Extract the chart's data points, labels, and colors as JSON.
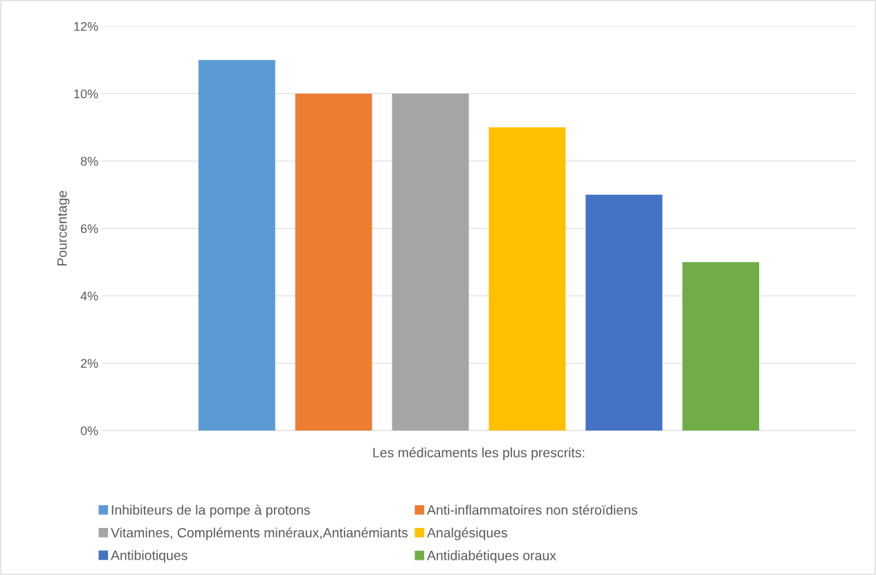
{
  "chart_data": {
    "type": "bar",
    "xlabel": "Les médicaments les plus prescrits:",
    "ylabel": "Pourcentage",
    "categories": [
      null
    ],
    "series": [
      {
        "name": "Inhibiteurs de la pompe à protons",
        "color": "#5b9bd5",
        "values": [
          11
        ]
      },
      {
        "name": "Anti-inflammatoires non stéroïdiens",
        "color": "#ed7d31",
        "values": [
          10
        ]
      },
      {
        "name": "Vitamines, Compléments minéraux,Antianémiants",
        "color": "#a5a5a5",
        "values": [
          10
        ]
      },
      {
        "name": "Analgésiques",
        "color": "#ffc000",
        "values": [
          9
        ]
      },
      {
        "name": "Antibiotiques",
        "color": "#4472c4",
        "values": [
          7
        ]
      },
      {
        "name": "Antidiabétiques oraux",
        "color": "#70ad47",
        "values": [
          5
        ]
      }
    ],
    "ylim": [
      0,
      12
    ],
    "yticks": [
      {
        "value": 0,
        "label": "0%"
      },
      {
        "value": 2,
        "label": "2%"
      },
      {
        "value": 4,
        "label": "4%"
      },
      {
        "value": 6,
        "label": "6%"
      },
      {
        "value": 8,
        "label": "8%"
      },
      {
        "value": 10,
        "label": "10%"
      },
      {
        "value": 12,
        "label": "12%"
      }
    ],
    "grid": "y",
    "legend": "bottom"
  }
}
